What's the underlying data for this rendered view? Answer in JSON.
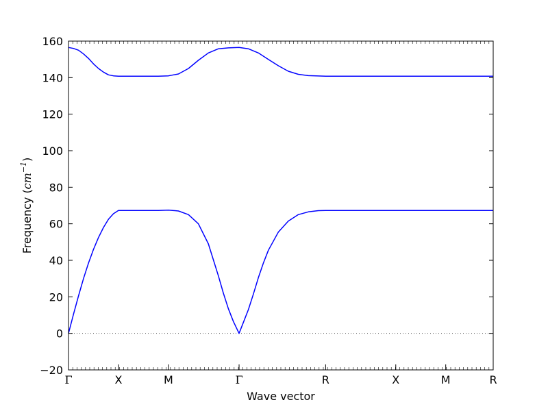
{
  "chart_data": {
    "type": "line",
    "title": "",
    "xlabel": "Wave vector",
    "ylabel": "Frequency",
    "ylabel_unit_base": "cm",
    "ylabel_unit_exp": "−1",
    "ylim": [
      -20,
      160
    ],
    "yticks": [
      -20,
      0,
      20,
      40,
      60,
      80,
      100,
      120,
      140,
      160
    ],
    "xlim": [
      0,
      8.5
    ],
    "xticks": [
      {
        "x": 0,
        "label": "Γ"
      },
      {
        "x": 1,
        "label": "X"
      },
      {
        "x": 2,
        "label": "M"
      },
      {
        "x": 3.414,
        "label": "Γ"
      },
      {
        "x": 5.146,
        "label": "R"
      },
      {
        "x": 6.55,
        "label": "X"
      },
      {
        "x": 7.55,
        "label": "M"
      },
      {
        "x": 8.5,
        "label": "R"
      }
    ],
    "zero_line": true,
    "line_color": "#0000ff",
    "series": [
      {
        "x": [
          0,
          0.1,
          0.2,
          0.3,
          0.4,
          0.5,
          0.6,
          0.7,
          0.8,
          0.9,
          1.0,
          1.2,
          1.5,
          1.8,
          2.0,
          2.2,
          2.4,
          2.6,
          2.8,
          3.0,
          3.1,
          3.2,
          3.3,
          3.414,
          3.5,
          3.6,
          3.7,
          3.8,
          3.9,
          4.0,
          4.2,
          4.4,
          4.6,
          4.8,
          5.0,
          5.146,
          5.5,
          6.0,
          6.55,
          7.0,
          7.55,
          8.0,
          8.5
        ],
        "y": [
          0,
          10.5,
          20.5,
          30,
          38.5,
          46,
          52.5,
          58,
          62.5,
          65.5,
          67.3,
          67.3,
          67.3,
          67.3,
          67.5,
          67,
          65,
          60,
          49,
          31.5,
          22,
          13.5,
          6.5,
          0,
          6,
          13,
          21.5,
          30.5,
          38.5,
          45.5,
          55.5,
          61.5,
          65,
          66.5,
          67.2,
          67.3,
          67.3,
          67.3,
          67.3,
          67.3,
          67.3,
          67.3,
          67.3
        ]
      },
      {
        "x": [
          0,
          0.1,
          0.2,
          0.3,
          0.4,
          0.5,
          0.6,
          0.7,
          0.8,
          0.9,
          1.0,
          1.2,
          1.5,
          1.8,
          2.0,
          2.2,
          2.4,
          2.6,
          2.8,
          3.0,
          3.2,
          3.414,
          3.6,
          3.8,
          4.0,
          4.2,
          4.4,
          4.6,
          4.8,
          5.0,
          5.146,
          5.5,
          6.0,
          6.55,
          7.0,
          7.55,
          8.0,
          8.5
        ],
        "y": [
          156.5,
          156,
          155,
          153,
          150.5,
          147.5,
          145,
          143,
          141.5,
          141,
          140.8,
          140.8,
          140.8,
          140.8,
          141,
          142,
          145,
          149.5,
          153.5,
          155.8,
          156.3,
          156.5,
          155.8,
          153.5,
          150,
          146.5,
          143.5,
          141.8,
          141.1,
          140.9,
          140.8,
          140.8,
          140.8,
          140.8,
          140.8,
          140.8,
          140.8,
          140.8
        ]
      }
    ]
  }
}
